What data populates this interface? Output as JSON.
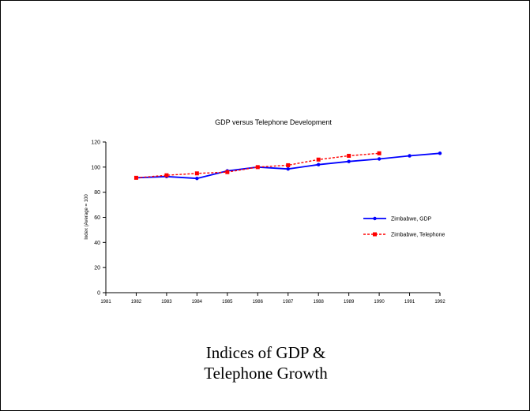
{
  "slide": {
    "caption_line1": "Indices of GDP &",
    "caption_line2": "Telephone Growth"
  },
  "chart_data": {
    "type": "line",
    "title": "GDP versus Telephone Development",
    "xlabel": "",
    "ylabel": "Index (Average = 100",
    "x": [
      1981,
      1982,
      1983,
      1984,
      1985,
      1986,
      1987,
      1988,
      1989,
      1990,
      1991,
      1992
    ],
    "xlim": [
      1981,
      1992
    ],
    "ylim": [
      0,
      120
    ],
    "yticks": [
      0,
      20,
      40,
      60,
      80,
      100,
      120
    ],
    "grid": false,
    "legend_position": "right",
    "series": [
      {
        "name": "Zimbabwe, GDP",
        "color": "#0000ff",
        "style": "solid",
        "marker": "circle",
        "x": [
          1982,
          1983,
          1984,
          1985,
          1986,
          1987,
          1988,
          1989,
          1990,
          1991,
          1992
        ],
        "values": [
          91.5,
          92.5,
          91,
          97,
          100,
          98.5,
          102,
          104.5,
          106.5,
          109,
          111
        ]
      },
      {
        "name": "Zimbabwe, Telephone",
        "color": "#ff0000",
        "style": "dashed",
        "marker": "square",
        "x": [
          1982,
          1983,
          1984,
          1985,
          1986,
          1987,
          1988,
          1989,
          1990
        ],
        "values": [
          91.5,
          93.5,
          95,
          96,
          100,
          101.5,
          106,
          109,
          111
        ]
      }
    ]
  }
}
